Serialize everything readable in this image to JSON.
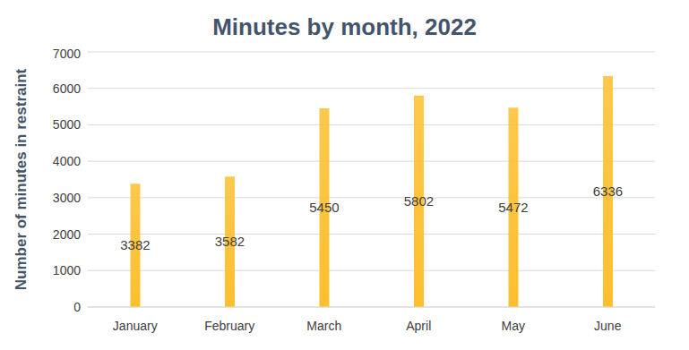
{
  "chart_data": {
    "type": "bar",
    "title": "Minutes by month, 2022",
    "y_label": "Number of minutes in restraint",
    "categories": [
      "January",
      "February",
      "March",
      "April",
      "May",
      "June"
    ],
    "values": [
      3382,
      3582,
      5450,
      5802,
      5472,
      6336
    ],
    "color": "#fdbf2d",
    "ylim": [
      0,
      7000
    ],
    "yticks": [
      0,
      1000,
      2000,
      3000,
      4000,
      5000,
      6000,
      7000
    ],
    "grid": true,
    "data_labels": true
  }
}
